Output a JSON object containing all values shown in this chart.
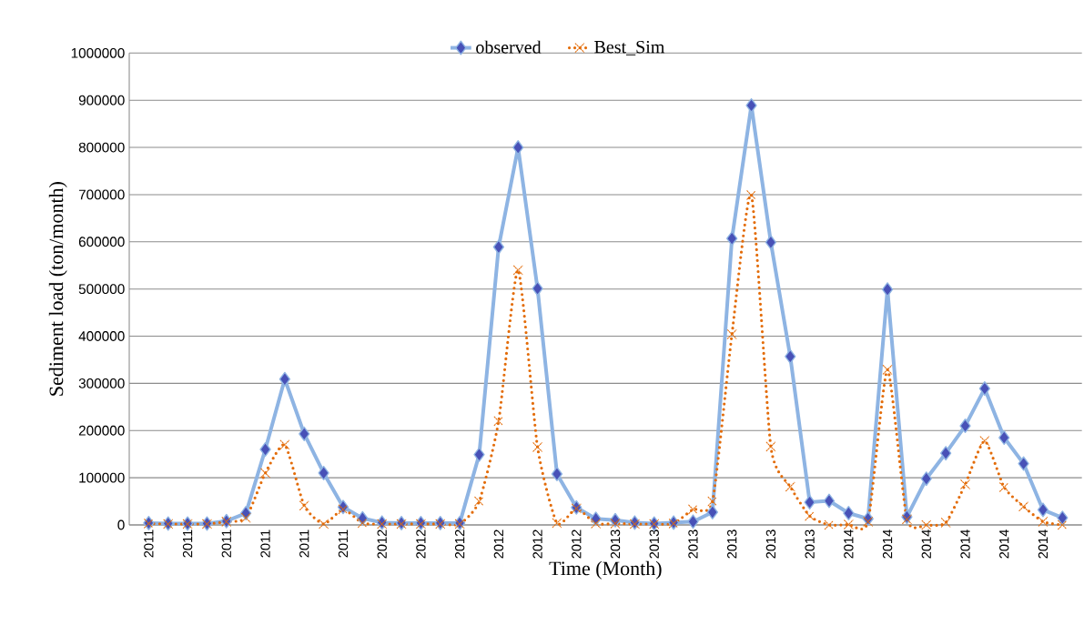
{
  "chart_data": {
    "type": "line",
    "xlabel": "Time (Month)",
    "ylabel": "Sediment load (ton/month)",
    "categories": [
      "2011",
      null,
      "2011",
      null,
      "2011",
      null,
      "2011",
      null,
      "2011",
      null,
      "2011",
      null,
      "2012",
      null,
      "2012",
      null,
      "2012",
      null,
      "2012",
      null,
      "2012",
      null,
      "2012",
      null,
      "2013",
      null,
      "2013",
      null,
      "2013",
      null,
      "2013",
      null,
      "2013",
      null,
      "2013",
      null,
      "2014",
      null,
      "2014",
      null,
      "2014",
      null,
      "2014",
      null,
      "2014",
      null,
      "2014",
      null
    ],
    "series": [
      {
        "name": "observed",
        "color": "#8eb4e3",
        "marker": "diamond",
        "line_style": "solid",
        "values": [
          4000,
          3000,
          3000,
          3000,
          8000,
          25000,
          160000,
          309000,
          193000,
          110000,
          38000,
          14000,
          5000,
          4000,
          4000,
          4000,
          4000,
          149000,
          589000,
          800000,
          501000,
          108000,
          37000,
          13000,
          10000,
          5000,
          3000,
          5000,
          7000,
          27000,
          607000,
          889000,
          599000,
          357000,
          48000,
          51000,
          25000,
          13000,
          499000,
          17000,
          98000,
          152000,
          210000,
          289000,
          185000,
          130000,
          32000,
          15000
        ]
      },
      {
        "name": "Best_Sim",
        "color": "#e36c09",
        "marker": "cross",
        "line_style": "dotted",
        "values": [
          3000,
          2000,
          2000,
          2000,
          7000,
          15000,
          110000,
          170000,
          41000,
          2000,
          33000,
          4000,
          2000,
          2000,
          2000,
          2000,
          2000,
          50000,
          220000,
          540000,
          165000,
          4000,
          35000,
          3000,
          3000,
          2000,
          2000,
          3000,
          33000,
          50000,
          404000,
          699000,
          166000,
          81000,
          19000,
          0,
          1000,
          7000,
          329000,
          12000,
          0,
          5000,
          86000,
          178000,
          80000,
          39000,
          7000,
          0
        ]
      }
    ],
    "ylim": [
      0,
      1000000
    ],
    "yticks": [
      0,
      100000,
      200000,
      300000,
      400000,
      500000,
      600000,
      700000,
      800000,
      900000,
      1000000
    ],
    "grid": "y",
    "legend": "top"
  }
}
